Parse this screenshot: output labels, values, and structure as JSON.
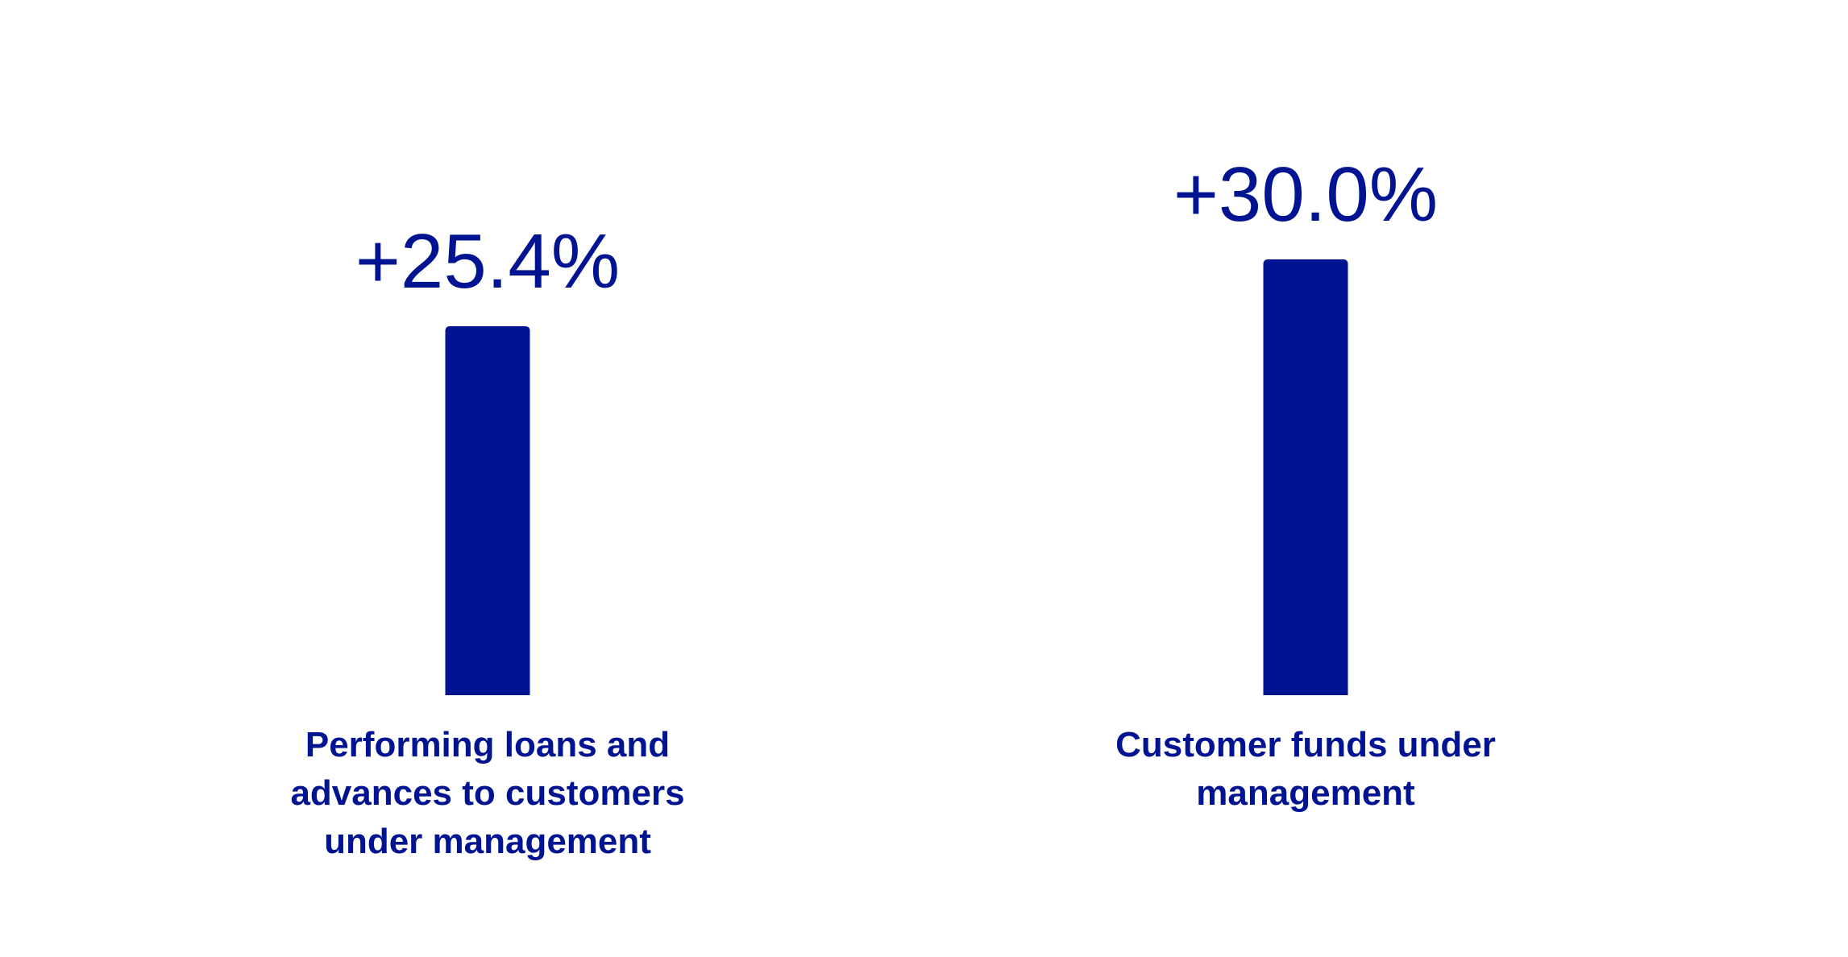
{
  "chart_data": {
    "type": "bar",
    "categories": [
      "Performing loans and advances to customers under management",
      "Customer funds under management"
    ],
    "values": [
      25.4,
      30.0
    ],
    "value_labels": [
      "+25.4%",
      "+30.0%"
    ],
    "color": "#001391"
  }
}
